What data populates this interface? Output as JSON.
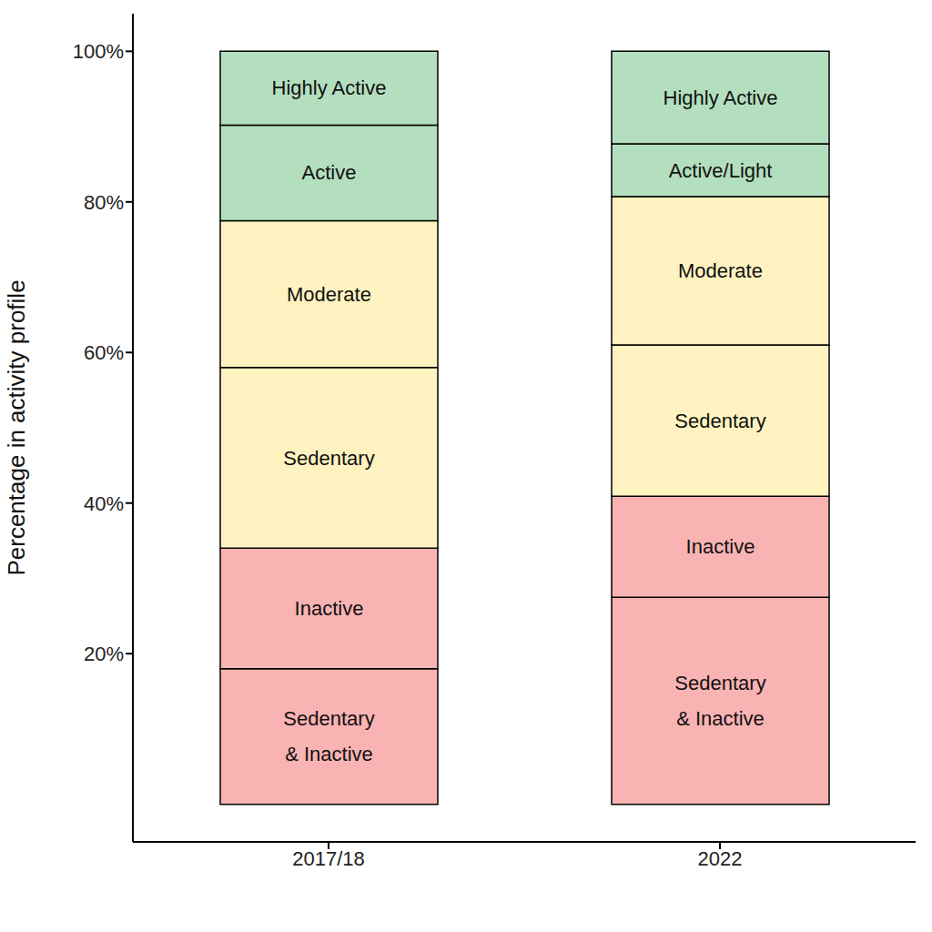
{
  "chart_data": {
    "type": "bar",
    "stacked": true,
    "y_label": "Percentage in activity profile",
    "categories": [
      "2017/18",
      "2022"
    ],
    "series": [
      {
        "labels": [
          "Sedentary & Inactive",
          "Sedentary & Inactive"
        ],
        "color": "#f9b3b3",
        "values": [
          18,
          27.5
        ]
      },
      {
        "labels": [
          "Inactive",
          "Inactive"
        ],
        "color": "#f9b3b3",
        "values": [
          16,
          13.4
        ]
      },
      {
        "labels": [
          "Sedentary",
          "Sedentary"
        ],
        "color": "#fef3c0",
        "values": [
          24,
          20.1
        ]
      },
      {
        "labels": [
          "Moderate",
          "Moderate"
        ],
        "color": "#fef3c0",
        "values": [
          19.5,
          19.7
        ]
      },
      {
        "labels": [
          "Active",
          "Active/Light"
        ],
        "color": "#b3dfbe",
        "values": [
          12.7,
          7.0
        ]
      },
      {
        "labels": [
          "Highly Active",
          "Highly Active"
        ],
        "color": "#b3dfbe",
        "values": [
          9.8,
          12.3
        ]
      }
    ],
    "ylim": [
      -5,
      105
    ],
    "yticks": [
      {
        "value": 20,
        "label": "20%"
      },
      {
        "value": 40,
        "label": "40%"
      },
      {
        "value": 60,
        "label": "60%"
      },
      {
        "value": 80,
        "label": "80%"
      },
      {
        "value": 100,
        "label": "100%"
      }
    ],
    "grid": false
  }
}
